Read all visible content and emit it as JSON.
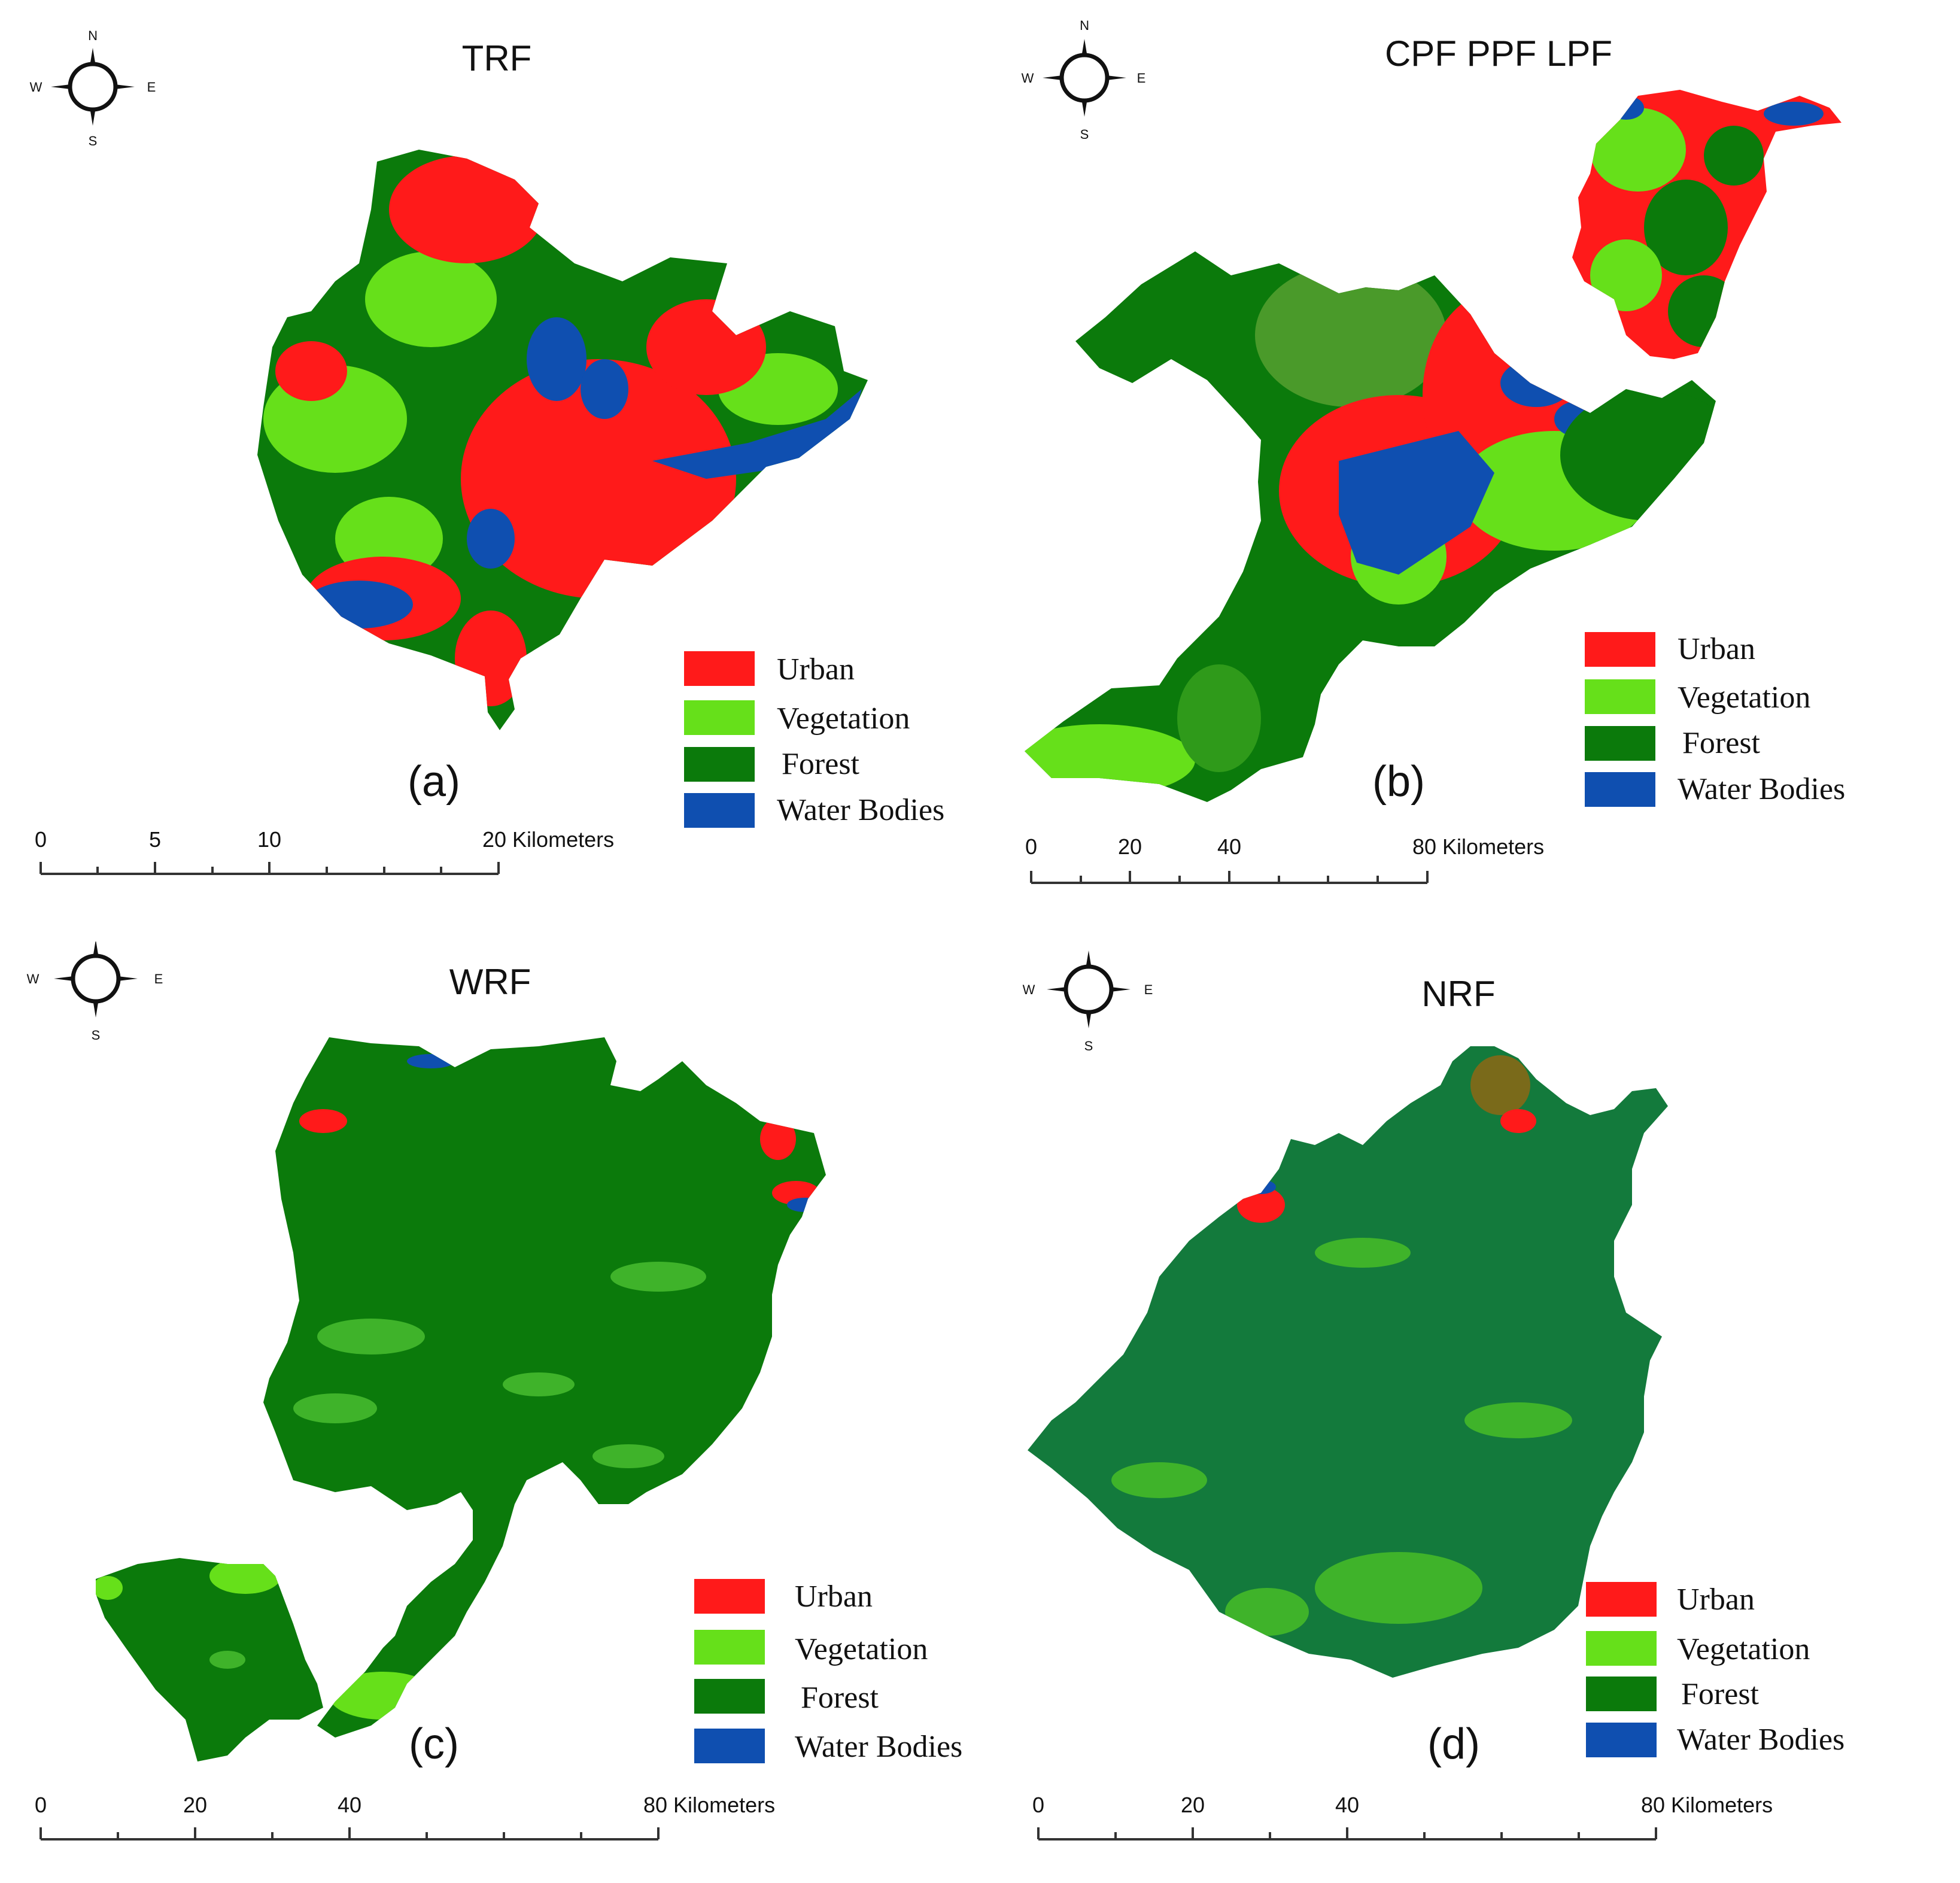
{
  "colors": {
    "urban": "#ff1a1a",
    "vegetation": "#66e01a",
    "forest": "#0b7a0b",
    "water": "#0f4fb0"
  },
  "compass": {
    "n": "N",
    "s": "S",
    "e": "E",
    "w": "W",
    "icon": "compass-rose-icon"
  },
  "legend": {
    "urban": "Urban",
    "vegetation": "Vegetation",
    "forest": "Forest",
    "water": "Water Bodies"
  },
  "panels": [
    {
      "id": "a",
      "title": "TRF",
      "caption": "(a)",
      "scale": {
        "ticks": [
          "0",
          "5",
          "10",
          "20 Kilometers"
        ]
      }
    },
    {
      "id": "b",
      "title": "CPF PPF LPF",
      "caption": "(b)",
      "scale": {
        "ticks": [
          "0",
          "20",
          "40",
          "80 Kilometers"
        ]
      }
    },
    {
      "id": "c",
      "title": "WRF",
      "caption": "(c)",
      "scale": {
        "ticks": [
          "0",
          "20",
          "40",
          "80 Kilometers"
        ]
      }
    },
    {
      "id": "d",
      "title": "NRF",
      "caption": "(d)",
      "scale": {
        "ticks": [
          "0",
          "20",
          "40",
          "80 Kilometers"
        ]
      }
    }
  ]
}
